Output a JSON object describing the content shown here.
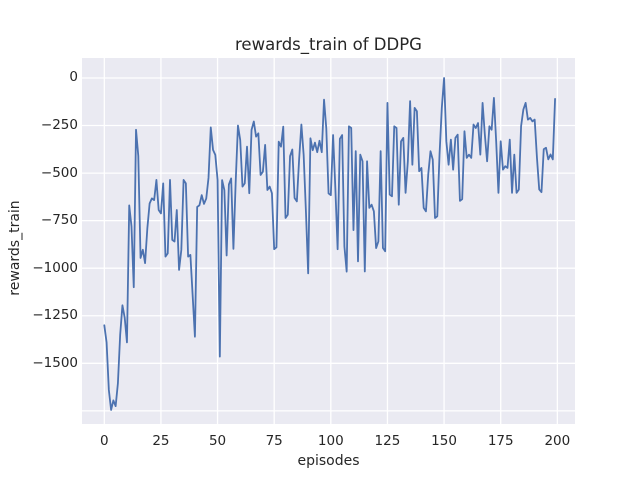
{
  "figure": {
    "background": "#ffffff"
  },
  "chart_data": {
    "type": "line",
    "title": "rewards_train of DDPG",
    "xlabel": "episodes",
    "ylabel": "rewards_train",
    "legend": null,
    "grid": true,
    "plot_background": "#eaeaf2",
    "grid_color": "#ffffff",
    "series_color": "#4c72b0",
    "text_color": "#262626",
    "xlim": [
      -9.85,
      207.8
    ],
    "ylim": [
      -1819,
      105
    ],
    "x_ticks": [
      0,
      25,
      50,
      75,
      100,
      125,
      150,
      175,
      200
    ],
    "x_tick_labels": [
      "0",
      "25",
      "50",
      "75",
      "100",
      "125",
      "150",
      "175",
      "200"
    ],
    "y_ticks": [
      0,
      -250,
      -500,
      -750,
      -1000,
      -1250,
      -1500
    ],
    "y_tick_labels": [
      "0",
      "−250",
      "−500",
      "−750",
      "−1000",
      "−1250",
      "−1500"
    ],
    "y_gridlines": [
      0,
      -250,
      -500,
      -750,
      -1000,
      -1250,
      -1500,
      -1750
    ],
    "x_description": "episode index, one point per episode starting at 0",
    "values": [
      -1300,
      -1390,
      -1640,
      -1745,
      -1695,
      -1725,
      -1605,
      -1350,
      -1195,
      -1260,
      -1390,
      -670,
      -780,
      -1100,
      -272,
      -410,
      -946,
      -903,
      -973,
      -790,
      -660,
      -633,
      -642,
      -536,
      -694,
      -712,
      -554,
      -939,
      -922,
      -536,
      -851,
      -860,
      -694,
      -1009,
      -904,
      -536,
      -554,
      -939,
      -930,
      -1143,
      -1360,
      -678,
      -669,
      -616,
      -662,
      -634,
      -525,
      -260,
      -378,
      -404,
      -536,
      -1465,
      -537,
      -589,
      -933,
      -560,
      -528,
      -898,
      -546,
      -250,
      -326,
      -571,
      -554,
      -361,
      -606,
      -273,
      -229,
      -308,
      -291,
      -510,
      -493,
      -352,
      -589,
      -571,
      -606,
      -900,
      -890,
      -335,
      -361,
      -256,
      -736,
      -719,
      -411,
      -376,
      -631,
      -649,
      -429,
      -245,
      -403,
      -700,
      -1027,
      -317,
      -380,
      -340,
      -390,
      -330,
      -390,
      -114,
      -265,
      -607,
      -616,
      -300,
      -580,
      -900,
      -320,
      -300,
      -886,
      -1018,
      -254,
      -263,
      -800,
      -385,
      -964,
      -403,
      -438,
      -1017,
      -438,
      -683,
      -666,
      -701,
      -894,
      -859,
      -385,
      -894,
      -911,
      -131,
      -613,
      -622,
      -254,
      -263,
      -666,
      -333,
      -315,
      -604,
      -438,
      -122,
      -456,
      -157,
      -175,
      -490,
      -473,
      -683,
      -701,
      -508,
      -385,
      -429,
      -736,
      -727,
      -400,
      -157,
      0,
      -333,
      -456,
      -324,
      -482,
      -315,
      -298,
      -646,
      -637,
      -280,
      -420,
      -403,
      -420,
      -245,
      -263,
      -237,
      -403,
      -131,
      -298,
      -438,
      -254,
      -272,
      -105,
      -333,
      -604,
      -333,
      -482,
      -464,
      -473,
      -324,
      -604,
      -403,
      -604,
      -587,
      -254,
      -166,
      -131,
      -219,
      -210,
      -228,
      -219,
      -419,
      -586,
      -600,
      -375,
      -367,
      -428,
      -402,
      -428,
      -110
    ]
  }
}
